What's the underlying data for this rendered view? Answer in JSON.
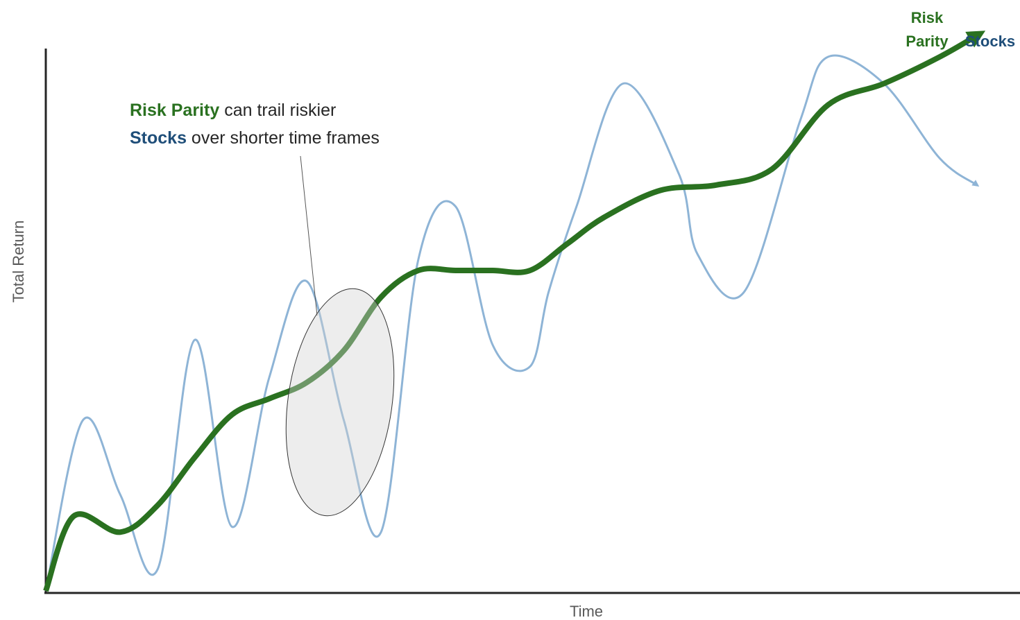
{
  "chart_data": {
    "type": "line",
    "title": "",
    "xlabel": "Time",
    "ylabel": "Total Return",
    "ticks": "none",
    "grid": false,
    "series": [
      {
        "name": "Stocks",
        "color": "#8eb4d6",
        "label_color": "#1f4e79",
        "end_label": "Stocks",
        "points": [
          [
            0,
            0
          ],
          [
            4,
            32
          ],
          [
            8,
            18
          ],
          [
            12,
            4
          ],
          [
            16,
            47
          ],
          [
            20,
            12
          ],
          [
            24,
            40
          ],
          [
            28,
            58
          ],
          [
            32,
            32
          ],
          [
            36,
            11
          ],
          [
            40,
            62
          ],
          [
            44,
            72
          ],
          [
            48,
            46
          ],
          [
            52,
            42
          ],
          [
            54,
            56
          ],
          [
            57,
            72
          ],
          [
            62,
            95
          ],
          [
            68,
            78
          ],
          [
            70,
            63
          ],
          [
            75,
            56
          ],
          [
            81,
            88
          ],
          [
            84,
            100
          ],
          [
            90,
            95
          ],
          [
            96,
            81
          ],
          [
            100,
            76
          ]
        ]
      },
      {
        "name": "Risk Parity",
        "color": "#2a7120",
        "label_color": "#2a7120",
        "end_label_lines": [
          "Risk",
          "Parity"
        ],
        "points": [
          [
            0,
            0
          ],
          [
            3,
            14
          ],
          [
            8,
            11
          ],
          [
            12,
            16
          ],
          [
            16,
            25
          ],
          [
            20,
            33
          ],
          [
            24,
            36
          ],
          [
            28,
            39
          ],
          [
            32,
            45
          ],
          [
            36,
            55
          ],
          [
            40,
            60
          ],
          [
            44,
            60
          ],
          [
            48,
            60
          ],
          [
            52,
            60
          ],
          [
            56,
            65
          ],
          [
            60,
            70
          ],
          [
            66,
            75
          ],
          [
            72,
            76
          ],
          [
            78,
            79
          ],
          [
            84,
            91
          ],
          [
            90,
            95
          ],
          [
            96,
            100
          ],
          [
            100,
            104
          ]
        ]
      }
    ],
    "annotation": {
      "line1_highlight": "Risk Parity",
      "line1_rest": " can trail riskier",
      "line2_highlight": "Stocks",
      "line2_rest": " over shorter time frames"
    }
  }
}
